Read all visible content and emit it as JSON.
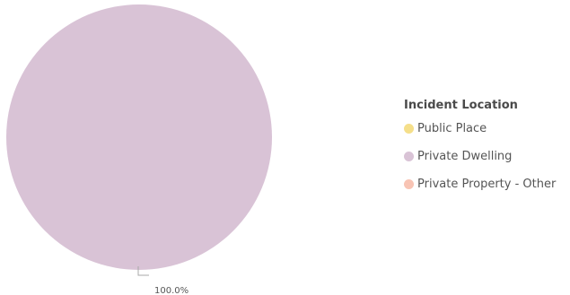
{
  "chart_data": {
    "type": "pie",
    "title": "",
    "legend_title": "Incident Location",
    "legend_position": "right",
    "categories": [
      "Public Place",
      "Private Dwelling",
      "Private Property - Other"
    ],
    "values": [
      0,
      100,
      0
    ],
    "colors": [
      "#f5df8a",
      "#d9c3d6",
      "#f8c4b4"
    ],
    "data_labels": [
      "100.0%"
    ]
  }
}
